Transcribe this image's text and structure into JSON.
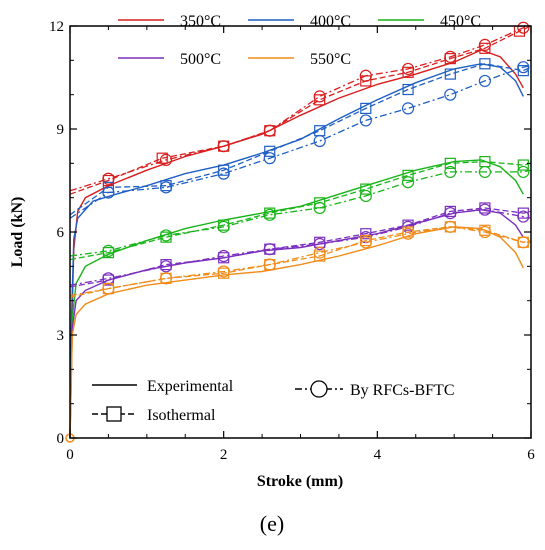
{
  "chart_data": {
    "type": "line",
    "xlabel": "Stroke (mm)",
    "ylabel": "Load (kN)",
    "xlim": [
      0,
      6
    ],
    "ylim": [
      0,
      12
    ],
    "xticks": [
      0,
      2,
      4,
      6
    ],
    "yticks": [
      0,
      3,
      6,
      9,
      12
    ],
    "panel_label": "(e)",
    "method_legend": [
      {
        "style": "solid",
        "label": "Experimental"
      },
      {
        "style": "dash-square",
        "label": "Isothermal"
      },
      {
        "style": "dashdot-circle",
        "label": "By RFCs-BFTC"
      }
    ],
    "series": [
      {
        "name": "350°C",
        "color": "#d81e1e",
        "experimental": [
          [
            0,
            0
          ],
          [
            0.02,
            3
          ],
          [
            0.05,
            5.5
          ],
          [
            0.1,
            6.6
          ],
          [
            0.2,
            7.0
          ],
          [
            0.5,
            7.35
          ],
          [
            1,
            7.8
          ],
          [
            1.5,
            8.2
          ],
          [
            2,
            8.5
          ],
          [
            2.5,
            8.85
          ],
          [
            3,
            9.4
          ],
          [
            3.5,
            9.9
          ],
          [
            4,
            10.3
          ],
          [
            4.5,
            10.6
          ],
          [
            5,
            10.95
          ],
          [
            5.35,
            11.3
          ],
          [
            5.6,
            11.1
          ],
          [
            5.8,
            10.6
          ],
          [
            5.9,
            10.2
          ]
        ],
        "isothermal": [
          [
            0,
            7.1
          ],
          [
            0.5,
            7.5
          ],
          [
            1.2,
            8.15
          ],
          [
            2,
            8.5
          ],
          [
            2.6,
            8.95
          ],
          [
            3.25,
            9.85
          ],
          [
            3.85,
            10.4
          ],
          [
            4.4,
            10.65
          ],
          [
            4.95,
            11.05
          ],
          [
            5.4,
            11.35
          ],
          [
            5.85,
            11.85
          ],
          [
            6,
            12.0
          ]
        ],
        "rfcs": [
          [
            0,
            7.2
          ],
          [
            0.5,
            7.55
          ],
          [
            1.25,
            8.1
          ],
          [
            2,
            8.5
          ],
          [
            2.6,
            8.95
          ],
          [
            3.25,
            9.95
          ],
          [
            3.85,
            10.55
          ],
          [
            4.4,
            10.75
          ],
          [
            4.95,
            11.1
          ],
          [
            5.4,
            11.45
          ],
          [
            5.9,
            11.95
          ],
          [
            6,
            12.0
          ]
        ]
      },
      {
        "name": "400°C",
        "color": "#1f5fc4",
        "experimental": [
          [
            0,
            0
          ],
          [
            0.02,
            3.5
          ],
          [
            0.05,
            5.8
          ],
          [
            0.1,
            6.4
          ],
          [
            0.3,
            6.9
          ],
          [
            0.6,
            7.1
          ],
          [
            1,
            7.35
          ],
          [
            1.5,
            7.7
          ],
          [
            2,
            7.95
          ],
          [
            2.5,
            8.3
          ],
          [
            3,
            8.7
          ],
          [
            3.5,
            9.3
          ],
          [
            4,
            9.85
          ],
          [
            4.5,
            10.35
          ],
          [
            5,
            10.75
          ],
          [
            5.35,
            10.9
          ],
          [
            5.6,
            10.8
          ],
          [
            5.8,
            10.4
          ],
          [
            5.9,
            9.95
          ]
        ],
        "isothermal": [
          [
            0,
            6.5
          ],
          [
            0.5,
            7.3
          ],
          [
            1.25,
            7.35
          ],
          [
            2,
            7.8
          ],
          [
            2.6,
            8.35
          ],
          [
            3.25,
            8.95
          ],
          [
            3.85,
            9.6
          ],
          [
            4.4,
            10.15
          ],
          [
            4.95,
            10.6
          ],
          [
            5.4,
            10.9
          ],
          [
            5.9,
            10.7
          ],
          [
            6,
            10.8
          ]
        ],
        "rfcs": [
          [
            0,
            6.4
          ],
          [
            0.5,
            7.15
          ],
          [
            1.25,
            7.3
          ],
          [
            2,
            7.7
          ],
          [
            2.6,
            8.15
          ],
          [
            3.25,
            8.65
          ],
          [
            3.85,
            9.25
          ],
          [
            4.4,
            9.6
          ],
          [
            4.95,
            10.0
          ],
          [
            5.4,
            10.4
          ],
          [
            5.9,
            10.8
          ],
          [
            6,
            10.85
          ]
        ]
      },
      {
        "name": "450°C",
        "color": "#19b419",
        "experimental": [
          [
            0,
            0
          ],
          [
            0.03,
            3.5
          ],
          [
            0.08,
            4.5
          ],
          [
            0.2,
            5.0
          ],
          [
            0.5,
            5.35
          ],
          [
            1,
            5.75
          ],
          [
            1.5,
            6.1
          ],
          [
            2,
            6.35
          ],
          [
            2.5,
            6.55
          ],
          [
            3,
            6.75
          ],
          [
            3.5,
            7.1
          ],
          [
            4,
            7.45
          ],
          [
            4.5,
            7.8
          ],
          [
            5,
            8.05
          ],
          [
            5.35,
            8.1
          ],
          [
            5.6,
            7.9
          ],
          [
            5.8,
            7.5
          ],
          [
            5.9,
            7.1
          ]
        ],
        "isothermal": [
          [
            0,
            5.2
          ],
          [
            0.5,
            5.4
          ],
          [
            1.25,
            5.85
          ],
          [
            2,
            6.2
          ],
          [
            2.6,
            6.55
          ],
          [
            3.25,
            6.85
          ],
          [
            3.85,
            7.25
          ],
          [
            4.4,
            7.65
          ],
          [
            4.95,
            8.0
          ],
          [
            5.4,
            8.05
          ],
          [
            5.9,
            7.95
          ],
          [
            6,
            8.0
          ]
        ],
        "rfcs": [
          [
            0,
            5.3
          ],
          [
            0.5,
            5.45
          ],
          [
            1.25,
            5.9
          ],
          [
            2,
            6.15
          ],
          [
            2.6,
            6.5
          ],
          [
            3.25,
            6.7
          ],
          [
            3.85,
            7.05
          ],
          [
            4.4,
            7.45
          ],
          [
            4.95,
            7.75
          ],
          [
            5.4,
            7.75
          ],
          [
            5.9,
            7.75
          ],
          [
            6,
            7.8
          ]
        ]
      },
      {
        "name": "500°C",
        "color": "#7b2fbe",
        "experimental": [
          [
            0,
            0
          ],
          [
            0.03,
            3.2
          ],
          [
            0.08,
            4.0
          ],
          [
            0.2,
            4.3
          ],
          [
            0.5,
            4.6
          ],
          [
            1,
            4.9
          ],
          [
            1.5,
            5.1
          ],
          [
            2,
            5.25
          ],
          [
            2.5,
            5.45
          ],
          [
            3,
            5.55
          ],
          [
            3.5,
            5.75
          ],
          [
            4,
            5.95
          ],
          [
            4.5,
            6.25
          ],
          [
            5,
            6.55
          ],
          [
            5.35,
            6.65
          ],
          [
            5.6,
            6.55
          ],
          [
            5.8,
            6.2
          ],
          [
            5.9,
            5.85
          ]
        ],
        "isothermal": [
          [
            0,
            4.4
          ],
          [
            0.5,
            4.6
          ],
          [
            1.25,
            5.05
          ],
          [
            2,
            5.25
          ],
          [
            2.6,
            5.5
          ],
          [
            3.25,
            5.7
          ],
          [
            3.85,
            5.95
          ],
          [
            4.4,
            6.2
          ],
          [
            4.95,
            6.6
          ],
          [
            5.4,
            6.7
          ],
          [
            5.9,
            6.55
          ],
          [
            6,
            6.6
          ]
        ],
        "rfcs": [
          [
            0,
            4.45
          ],
          [
            0.5,
            4.65
          ],
          [
            1.25,
            5.0
          ],
          [
            2,
            5.3
          ],
          [
            2.6,
            5.5
          ],
          [
            3.25,
            5.65
          ],
          [
            3.85,
            5.85
          ],
          [
            4.4,
            6.15
          ],
          [
            4.95,
            6.55
          ],
          [
            5.4,
            6.65
          ],
          [
            5.9,
            6.45
          ],
          [
            6,
            6.4
          ]
        ]
      },
      {
        "name": "550°C",
        "color": "#f08c1a",
        "experimental": [
          [
            0,
            0
          ],
          [
            0.03,
            3.0
          ],
          [
            0.08,
            3.6
          ],
          [
            0.2,
            3.9
          ],
          [
            0.5,
            4.2
          ],
          [
            1,
            4.45
          ],
          [
            1.5,
            4.6
          ],
          [
            2,
            4.75
          ],
          [
            2.5,
            4.85
          ],
          [
            3,
            5.05
          ],
          [
            3.5,
            5.3
          ],
          [
            4,
            5.6
          ],
          [
            4.5,
            5.95
          ],
          [
            5,
            6.15
          ],
          [
            5.35,
            6.1
          ],
          [
            5.6,
            5.85
          ],
          [
            5.8,
            5.4
          ],
          [
            5.9,
            4.95
          ]
        ],
        "isothermal": [
          [
            0,
            4.1
          ],
          [
            0.5,
            4.35
          ],
          [
            1.25,
            4.65
          ],
          [
            2,
            4.8
          ],
          [
            2.6,
            5.05
          ],
          [
            3.25,
            5.3
          ],
          [
            3.85,
            5.75
          ],
          [
            4.4,
            6.0
          ],
          [
            4.95,
            6.15
          ],
          [
            5.4,
            6.05
          ],
          [
            5.9,
            5.7
          ],
          [
            6,
            5.75
          ]
        ],
        "rfcs": [
          [
            0,
            4.15
          ],
          [
            0.5,
            4.35
          ],
          [
            1.25,
            4.65
          ],
          [
            2,
            4.85
          ],
          [
            2.6,
            5.05
          ],
          [
            3.25,
            5.4
          ],
          [
            3.85,
            5.7
          ],
          [
            4.4,
            5.95
          ],
          [
            4.95,
            6.15
          ],
          [
            5.4,
            6.0
          ],
          [
            5.9,
            5.7
          ],
          [
            6,
            5.7
          ]
        ]
      }
    ]
  }
}
